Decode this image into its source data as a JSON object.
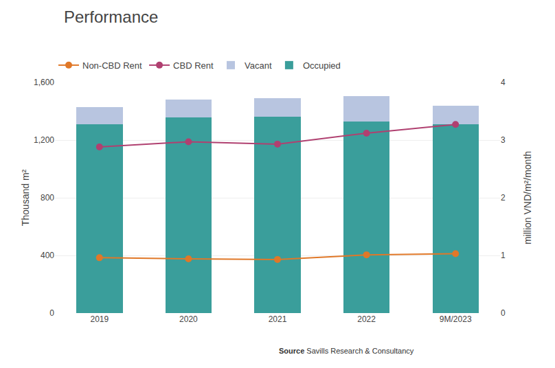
{
  "chart_data": {
    "type": "bar",
    "title": "Performance",
    "categories": [
      "2019",
      "2020",
      "2021",
      "2022",
      "9M/2023"
    ],
    "series": [
      {
        "name": "Occupied",
        "type": "bar",
        "color": "#3a9e9b",
        "values": [
          1310,
          1355,
          1360,
          1330,
          1310
        ]
      },
      {
        "name": "Vacant",
        "type": "bar",
        "color": "#b8c5e0",
        "values": [
          120,
          125,
          130,
          175,
          130
        ]
      },
      {
        "name": "CBD Rent",
        "type": "line",
        "axis": "y2",
        "marker": "circle",
        "color": "#b04070",
        "values": [
          2.88,
          2.97,
          2.93,
          3.12,
          3.27
        ]
      },
      {
        "name": "Non-CBD Rent",
        "type": "line",
        "axis": "y2",
        "marker": "circle",
        "color": "#e07828",
        "values": [
          0.96,
          0.94,
          0.93,
          1.01,
          1.03
        ]
      }
    ],
    "stacked": true,
    "ylabel": "Thousand m²",
    "y2label": "million VND/m²/month",
    "ylim": [
      0,
      1600
    ],
    "yticks": [
      0,
      400,
      800,
      {
        "value": 1200,
        "label": "1,200"
      },
      {
        "value": 1600,
        "label": "1,600"
      }
    ],
    "y2lim": [
      0,
      4
    ],
    "y2ticks": [
      0,
      1,
      2,
      3,
      4
    ],
    "grid": true,
    "legend": "top left",
    "annotations": [
      "Source",
      " Savills Research & Consultancy"
    ]
  }
}
